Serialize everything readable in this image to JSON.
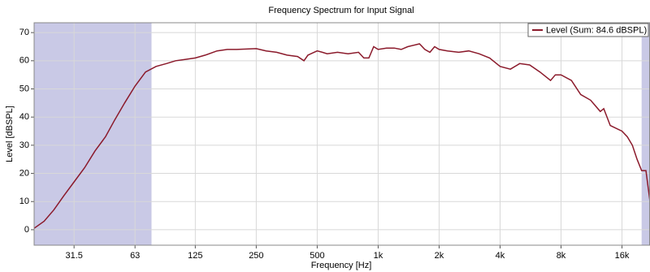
{
  "chart_data": {
    "type": "line",
    "title": "Frequency Spectrum for Input Signal",
    "x_label": "Frequency [Hz]",
    "y_label": "Level [dBSPL]",
    "x_scale": "log",
    "grid": true,
    "legend_position": "upper right",
    "xlim": [
      20,
      22000
    ],
    "ylim": [
      -5.5,
      73.5
    ],
    "xticks": [
      31.5,
      63,
      125,
      250,
      500,
      {
        "value": 1000,
        "label": "1k"
      },
      {
        "value": 2000,
        "label": "2k"
      },
      {
        "value": 4000,
        "label": "4k"
      },
      {
        "value": 8000,
        "label": "8k"
      },
      {
        "value": 16000,
        "label": "16k"
      }
    ],
    "yticks": [
      0,
      10,
      20,
      30,
      40,
      50,
      60,
      70
    ],
    "shaded_ranges": [
      [
        20,
        76
      ],
      [
        20000,
        22000
      ]
    ],
    "shade_color": "#c9c9e6",
    "series": [
      {
        "name": "Level (Sum: 84.6 dBSPL)",
        "color": "#8b1a2b",
        "x": [
          20,
          22.4,
          25,
          28,
          31.5,
          35.5,
          40,
          45,
          50,
          56,
          63,
          71,
          80,
          90,
          100,
          112,
          125,
          140,
          160,
          180,
          200,
          250,
          280,
          315,
          355,
          400,
          430,
          450,
          500,
          530,
          560,
          630,
          710,
          800,
          850,
          900,
          950,
          1000,
          1100,
          1200,
          1300,
          1400,
          1600,
          1700,
          1800,
          1900,
          2000,
          2200,
          2500,
          2800,
          3150,
          3550,
          4000,
          4500,
          5000,
          5600,
          6300,
          7100,
          7500,
          8000,
          9000,
          10000,
          11200,
          12500,
          13000,
          14000,
          16000,
          17000,
          18000,
          19000,
          20000,
          21000,
          22000
        ],
        "values": [
          0.5,
          3,
          7,
          12,
          17,
          22,
          28,
          33,
          39,
          45,
          51,
          56,
          58,
          59,
          60,
          60.5,
          61,
          62,
          63.5,
          64,
          64,
          64.3,
          63.5,
          63,
          62,
          61.5,
          60,
          62,
          63.5,
          63,
          62.5,
          63,
          62.5,
          63,
          61,
          61,
          65,
          64,
          64.5,
          64.5,
          64,
          65,
          66,
          64,
          63,
          65,
          64,
          63.5,
          63,
          63.5,
          62.5,
          61,
          58,
          57,
          59,
          58.5,
          56,
          53,
          55,
          55,
          53,
          48,
          46,
          42,
          43,
          37,
          35,
          33,
          30,
          25,
          21,
          21,
          10
        ]
      }
    ]
  }
}
